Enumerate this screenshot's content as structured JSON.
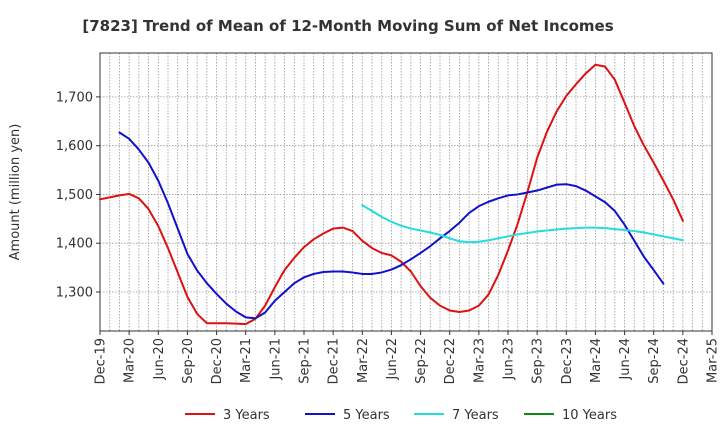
{
  "chart_data": {
    "type": "line",
    "title": "[7823]  Trend of Mean of 12-Month Moving Sum of Net Incomes",
    "xlabel": "",
    "ylabel": "Amount (million yen)",
    "ylim": [
      1220,
      1790
    ],
    "y_ticks": [
      1300,
      1400,
      1500,
      1600,
      1700
    ],
    "y_tick_labels": [
      "1,300",
      "1,400",
      "1,500",
      "1,600",
      "1,700"
    ],
    "x_start": "Dec-19",
    "x_ticks": [
      "Dec-19",
      "Mar-20",
      "Jun-20",
      "Sep-20",
      "Dec-20",
      "Mar-21",
      "Jun-21",
      "Sep-21",
      "Dec-21",
      "Mar-22",
      "Jun-22",
      "Sep-22",
      "Dec-22",
      "Mar-23",
      "Jun-23",
      "Sep-23",
      "Dec-23",
      "Mar-24",
      "Jun-24",
      "Sep-24",
      "Dec-24",
      "Mar-25"
    ],
    "grid": true,
    "legend_position": "bottom",
    "series": [
      {
        "name": "3 Years",
        "color": "#dd1111",
        "start": "Dec-19",
        "values": [
          1490,
          1494,
          1498,
          1501,
          1492,
          1470,
          1435,
          1390,
          1340,
          1290,
          1255,
          1236,
          1236,
          1236,
          1235,
          1234,
          1245,
          1272,
          1310,
          1345,
          1370,
          1392,
          1408,
          1420,
          1430,
          1432,
          1425,
          1405,
          1390,
          1380,
          1375,
          1362,
          1342,
          1312,
          1288,
          1272,
          1262,
          1259,
          1262,
          1272,
          1295,
          1335,
          1385,
          1440,
          1505,
          1575,
          1628,
          1670,
          1702,
          1726,
          1748,
          1766,
          1762,
          1735,
          1688,
          1640,
          1600,
          1565,
          1528,
          1490,
          1446
        ]
      },
      {
        "name": "5 Years",
        "color": "#1111cc",
        "start": "Dec-19",
        "values": [
          null,
          null,
          1627,
          1614,
          1592,
          1565,
          1528,
          1482,
          1430,
          1378,
          1344,
          1318,
          1296,
          1276,
          1260,
          1248,
          1246,
          1258,
          1282,
          1300,
          1318,
          1330,
          1337,
          1341,
          1342,
          1342,
          1340,
          1337,
          1337,
          1340,
          1346,
          1355,
          1367,
          1380,
          1394,
          1410,
          1425,
          1442,
          1462,
          1476,
          1485,
          1492,
          1498,
          1500,
          1504,
          1508,
          1514,
          1520,
          1521,
          1517,
          1508,
          1496,
          1484,
          1466,
          1438,
          1405,
          1372,
          1345,
          1317
        ]
      },
      {
        "name": "7 Years",
        "color": "#22dddd",
        "start": "Dec-19",
        "values": [
          null,
          null,
          null,
          null,
          null,
          null,
          null,
          null,
          null,
          null,
          null,
          null,
          null,
          null,
          null,
          null,
          null,
          null,
          null,
          null,
          null,
          null,
          null,
          null,
          null,
          null,
          null,
          1478,
          1466,
          1454,
          1444,
          1436,
          1430,
          1426,
          1422,
          1417,
          1410,
          1404,
          1402,
          1403,
          1406,
          1410,
          1414,
          1418,
          1421,
          1424,
          1426,
          1428,
          1430,
          1431,
          1432,
          1432,
          1431,
          1429,
          1427,
          1425,
          1422,
          1418,
          1414,
          1410,
          1406
        ]
      },
      {
        "name": "10 Years",
        "color": "#118811",
        "start": "Dec-19",
        "values": []
      }
    ]
  }
}
